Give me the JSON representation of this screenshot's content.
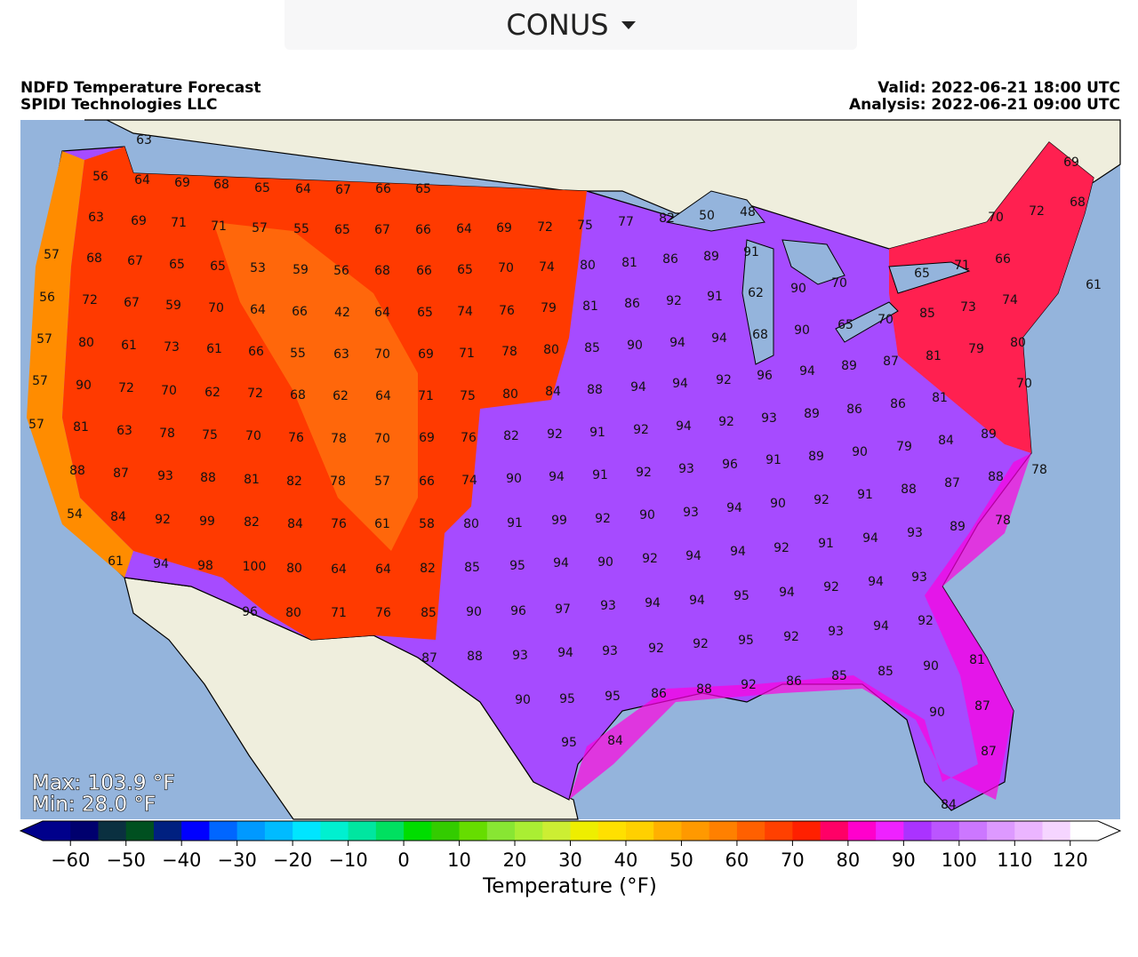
{
  "dropdown": {
    "label": "CONUS"
  },
  "header": {
    "title": "NDFD Temperature Forecast",
    "source": "SPIDI Technologies LLC",
    "valid": "Valid: 2022-06-21 18:00 UTC",
    "analysis": "Analysis: 2022-06-21 09:00 UTC"
  },
  "stats": {
    "max": "Max: 103.9 °F",
    "min": "Min: 28.0 °F"
  },
  "map_labels": [
    [
      63,
      56,
      64,
      69,
      68,
      65,
      64,
      67,
      66,
      65
    ],
    [
      63,
      69,
      71,
      71,
      57,
      55,
      65,
      67,
      66,
      64,
      69,
      72,
      75,
      77,
      82,
      50,
      48
    ],
    [
      57,
      68,
      67,
      65,
      65,
      53,
      59,
      56,
      68,
      66,
      65,
      70,
      74,
      80,
      81,
      86,
      89,
      91,
      70,
      72,
      69,
      68
    ],
    [
      56,
      72,
      67,
      59,
      70,
      64,
      66,
      42,
      64,
      65,
      74,
      76,
      79,
      81,
      86,
      92,
      91,
      62,
      90,
      70,
      65,
      71,
      66,
      61
    ],
    [
      57,
      80,
      61,
      73,
      61,
      66,
      55,
      63,
      70,
      69,
      71,
      78,
      80,
      85,
      90,
      94,
      94,
      68,
      90,
      65,
      70,
      85,
      73,
      74
    ],
    [
      57,
      90,
      72,
      70,
      62,
      72,
      68,
      62,
      64,
      71,
      75,
      80,
      84,
      88,
      94,
      94,
      92,
      96,
      94,
      89,
      87,
      81,
      79,
      80
    ],
    [
      57,
      81,
      63,
      78,
      75,
      70,
      76,
      78,
      70,
      69,
      76,
      82,
      92,
      91,
      92,
      94,
      92,
      93,
      89,
      86,
      86,
      81,
      70
    ],
    [
      88,
      87,
      93,
      88,
      81,
      82,
      78,
      57,
      66,
      74,
      90,
      94,
      91,
      92,
      93,
      96,
      91,
      89,
      90,
      79,
      84,
      89,
      78
    ],
    [
      54,
      84,
      92,
      99,
      82,
      84,
      76,
      61,
      58,
      80,
      91,
      99,
      92,
      90,
      93,
      94,
      90,
      92,
      91,
      88,
      87,
      88
    ],
    [
      61,
      94,
      98,
      100,
      80,
      64,
      64,
      82,
      85,
      95,
      94,
      90,
      92,
      94,
      94,
      92,
      91,
      94,
      93,
      89,
      78
    ],
    [
      96,
      80,
      71,
      76,
      85,
      90,
      96,
      97,
      93,
      94,
      94,
      95,
      94,
      92,
      94,
      93
    ],
    [
      87,
      88,
      93,
      94,
      93,
      92,
      92,
      95,
      92,
      93,
      94,
      92
    ],
    [
      90,
      95,
      95,
      86,
      88,
      92,
      86,
      85,
      85,
      90,
      81
    ],
    [
      95,
      84,
      90,
      87,
      87,
      84
    ]
  ],
  "colorbar": {
    "label": "Temperature (°F)",
    "lim": [
      -65,
      125
    ],
    "ticks": [
      {
        "value": -60,
        "label": "−60"
      },
      {
        "value": -50,
        "label": "−50"
      },
      {
        "value": -40,
        "label": "−40"
      },
      {
        "value": -30,
        "label": "−30"
      },
      {
        "value": -20,
        "label": "−20"
      },
      {
        "value": -10,
        "label": "−10"
      },
      0,
      10,
      20,
      30,
      40,
      50,
      60,
      70,
      80,
      90,
      100,
      110,
      120
    ],
    "colors": [
      "#00008b",
      "#00006e",
      "#0a3040",
      "#005020",
      "#002080",
      "#0000ff",
      "#0066ff",
      "#0099ff",
      "#00bbff",
      "#00e5ff",
      "#00f0d0",
      "#00e6a0",
      "#00e060",
      "#00dd00",
      "#33cc00",
      "#66dd00",
      "#88e633",
      "#aaee33",
      "#ccee33",
      "#eeee00",
      "#ffe000",
      "#ffd000",
      "#ffb000",
      "#ff9900",
      "#ff8000",
      "#ff6000",
      "#ff4000",
      "#ff2000",
      "#ff0066",
      "#ff00cc",
      "#ee22ff",
      "#aa33ff",
      "#bb55ff",
      "#cc77ff",
      "#dd99ff",
      "#ebb5ff",
      "#f5d5ff",
      "#ffffff"
    ],
    "under": "#00008b",
    "over": "#ffffff"
  }
}
